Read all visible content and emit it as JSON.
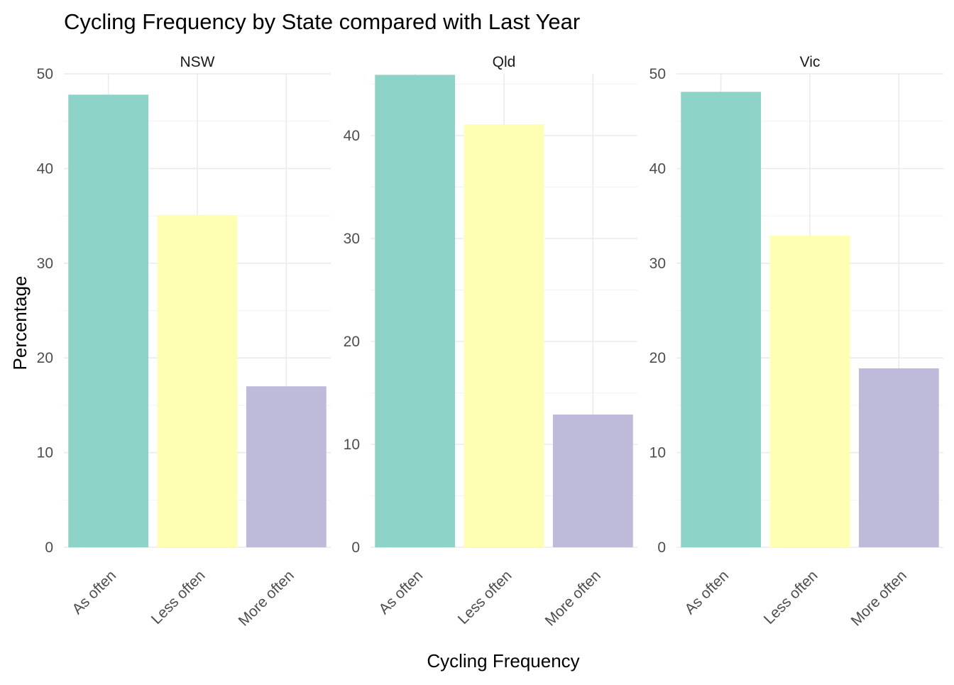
{
  "chart_data": {
    "type": "bar",
    "title": "Cycling Frequency by State compared with Last Year",
    "xlabel": "Cycling Frequency",
    "ylabel": "Percentage",
    "categories": [
      "As often",
      "Less often",
      "More often"
    ],
    "colors": {
      "As often": "#8ed3c7",
      "Less often": "#ffffb3",
      "More often": "#bebada"
    },
    "grid": true,
    "legend": "none",
    "facets": [
      {
        "name": "NSW",
        "values": [
          47.8,
          35.1,
          17.0
        ],
        "ylim": [
          0,
          50
        ],
        "yticks": [
          "0",
          "10",
          "20",
          "30",
          "40",
          "50"
        ]
      },
      {
        "name": "Qld",
        "values": [
          45.9,
          41.1,
          12.9
        ],
        "ylim": [
          0,
          46
        ],
        "yticks": [
          "0",
          "10",
          "20",
          "30",
          "40"
        ]
      },
      {
        "name": "Vic",
        "values": [
          48.1,
          32.9,
          18.9
        ],
        "ylim": [
          0,
          50
        ],
        "yticks": [
          "0",
          "10",
          "20",
          "30",
          "40",
          "50"
        ]
      }
    ]
  }
}
